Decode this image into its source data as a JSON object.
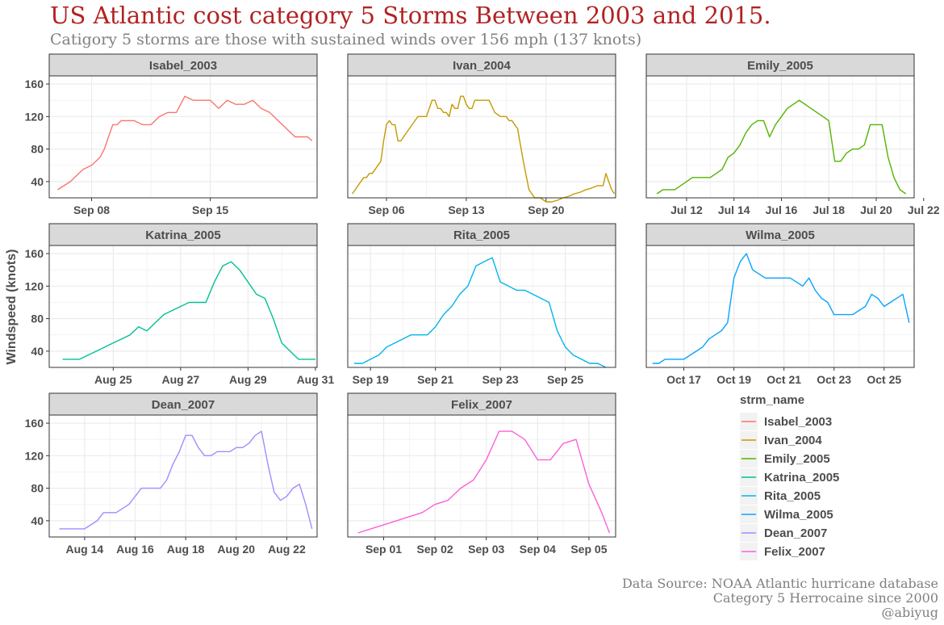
{
  "title": "US Atlantic cost category 5 Storms Between 2003 and 2015.",
  "subtitle": "Catigory 5 storms are those with sustained winds over 156 mph (137 knots)",
  "caption": [
    "Data Source:  NOAA Atlantic hurricane database",
    "Category 5 Herrocaine since 2000",
    "@abiyug"
  ],
  "chart_data": {
    "type": "line",
    "ylabel": "Windspeed (knots)",
    "y_ticks": [
      40,
      80,
      120,
      160
    ],
    "ylim": [
      20,
      170
    ],
    "legend": {
      "title": "strm_name",
      "position": "right"
    },
    "grid": true,
    "facets": [
      {
        "name": "Isabel_2003",
        "color": "#F8766D",
        "x_ticks": [
          "Sep 08",
          "Sep 15"
        ],
        "tick_days": [
          1,
          8
        ],
        "xlim": [
          -1.5,
          14.3
        ],
        "x": [
          -1,
          -0.25,
          0,
          0.5,
          1,
          1.25,
          1.5,
          1.75,
          2,
          2.25,
          2.5,
          2.75,
          3,
          3.5,
          4,
          4.5,
          4.75,
          5,
          5.5,
          6,
          6.5,
          7,
          7.5,
          7.75,
          8,
          8.5,
          9,
          9.5,
          9.75,
          10,
          10.5,
          11,
          11.5,
          11.75,
          12,
          12.5,
          12.75,
          13,
          13.25,
          13.5,
          13.75,
          14
        ],
        "y": [
          30,
          40,
          45,
          55,
          60,
          65,
          70,
          80,
          95,
          110,
          110,
          115,
          115,
          115,
          110,
          110,
          115,
          120,
          125,
          125,
          145,
          140,
          140,
          140,
          140,
          130,
          140,
          135,
          135,
          135,
          140,
          130,
          125,
          120,
          115,
          105,
          100,
          95,
          95,
          95,
          95,
          90
        ]
      },
      {
        "name": "Ivan_2004",
        "color": "#C49A00",
        "x_ticks": [
          "Sep 06",
          "Sep 13",
          "Sep 20"
        ],
        "tick_days": [
          1,
          8,
          15
        ],
        "xlim": [
          -2.4,
          21.1
        ],
        "x": [
          -2,
          -1.5,
          -1,
          -0.75,
          -0.5,
          -0.25,
          0,
          0.5,
          0.75,
          1,
          1.25,
          1.5,
          1.75,
          2,
          2.25,
          2.5,
          3,
          3.5,
          3.75,
          4,
          4.5,
          4.75,
          5,
          5.25,
          5.5,
          5.75,
          6,
          6.25,
          6.5,
          6.75,
          7,
          7.25,
          7.5,
          7.75,
          8,
          8.25,
          8.5,
          8.75,
          9,
          9.25,
          9.5,
          10,
          10.5,
          11,
          11.25,
          11.5,
          11.75,
          12,
          12.5,
          13,
          13.5,
          14,
          14.5,
          15,
          15.5,
          16,
          16.5,
          17,
          17.5,
          18,
          18.5,
          19,
          19.5,
          20,
          20.25,
          20.5,
          20.75,
          21
        ],
        "y": [
          25,
          35,
          45,
          45,
          50,
          50,
          55,
          65,
          90,
          110,
          115,
          110,
          110,
          90,
          90,
          95,
          105,
          115,
          120,
          120,
          120,
          130,
          140,
          140,
          130,
          130,
          125,
          125,
          120,
          135,
          130,
          130,
          145,
          145,
          135,
          130,
          130,
          140,
          140,
          140,
          140,
          140,
          125,
          120,
          120,
          120,
          115,
          115,
          105,
          65,
          30,
          20,
          20,
          15,
          15,
          17,
          20,
          22,
          25,
          27,
          30,
          32,
          35,
          35,
          50,
          40,
          30,
          25
        ]
      },
      {
        "name": "Emily_2005",
        "color": "#53B400",
        "x_ticks": [
          "Jul 12",
          "Jul 14",
          "Jul 16",
          "Jul 18",
          "Jul 20",
          "Jul 22"
        ],
        "tick_days": [
          12,
          14,
          16,
          18,
          20,
          22
        ],
        "xlim": [
          10.3,
          21.6
        ],
        "x": [
          10.75,
          11,
          11.25,
          11.5,
          11.75,
          12,
          12.25,
          12.5,
          12.75,
          13,
          13.25,
          13.5,
          13.75,
          14,
          14.25,
          14.5,
          14.75,
          15,
          15.25,
          15.5,
          15.75,
          16,
          16.25,
          16.5,
          16.75,
          17,
          17.25,
          17.5,
          17.75,
          18,
          18.25,
          18.5,
          18.75,
          19,
          19.25,
          19.5,
          19.75,
          20,
          20.25,
          20.5,
          20.75,
          21,
          21.25
        ],
        "y": [
          25,
          30,
          30,
          30,
          35,
          40,
          45,
          45,
          45,
          45,
          50,
          55,
          70,
          75,
          85,
          100,
          110,
          115,
          115,
          95,
          110,
          120,
          130,
          135,
          140,
          135,
          130,
          125,
          120,
          115,
          65,
          65,
          75,
          80,
          80,
          85,
          110,
          110,
          110,
          70,
          45,
          30,
          25
        ]
      },
      {
        "name": "Katrina_2005",
        "color": "#00C094",
        "x_ticks": [
          "Aug 25",
          "Aug 27",
          "Aug 29",
          "Aug 31"
        ],
        "tick_days": [
          25,
          27,
          29,
          31
        ],
        "xlim": [
          23.1,
          31.05
        ],
        "x": [
          23.5,
          23.75,
          24,
          24.25,
          24.5,
          24.75,
          25,
          25.25,
          25.5,
          25.75,
          26,
          26.25,
          26.5,
          26.75,
          27,
          27.25,
          27.5,
          27.75,
          28,
          28.25,
          28.5,
          28.75,
          29,
          29.25,
          29.5,
          29.75,
          30,
          30.25,
          30.5,
          30.75,
          31
        ],
        "y": [
          30,
          30,
          30,
          35,
          40,
          45,
          50,
          55,
          60,
          70,
          65,
          75,
          85,
          90,
          95,
          100,
          100,
          100,
          125,
          145,
          150,
          140,
          125,
          110,
          105,
          80,
          50,
          40,
          30,
          30,
          30
        ]
      },
      {
        "name": "Rita_2005",
        "color": "#00B6EB",
        "x_ticks": [
          "Sep 19",
          "Sep 21",
          "Sep 23",
          "Sep 25"
        ],
        "tick_days": [
          19,
          21,
          23,
          25
        ],
        "xlim": [
          18.3,
          26.55
        ],
        "x": [
          18.5,
          18.75,
          19,
          19.25,
          19.5,
          19.75,
          20,
          20.25,
          20.5,
          20.75,
          21,
          21.25,
          21.5,
          21.75,
          22,
          22.25,
          22.5,
          22.75,
          23,
          23.25,
          23.5,
          23.75,
          24,
          24.25,
          24.5,
          24.75,
          25,
          25.25,
          25.5,
          25.75,
          26,
          26.25
        ],
        "y": [
          25,
          25,
          30,
          35,
          45,
          50,
          55,
          60,
          60,
          60,
          70,
          85,
          95,
          110,
          120,
          145,
          150,
          155,
          125,
          120,
          115,
          115,
          110,
          105,
          100,
          65,
          45,
          35,
          30,
          25,
          25,
          20
        ]
      },
      {
        "name": "Wilma_2005",
        "color": "#06A4FF",
        "x_ticks": [
          "Oct 17",
          "Oct 19",
          "Oct 21",
          "Oct 23",
          "Oct 25"
        ],
        "tick_days": [
          17,
          19,
          21,
          23,
          25
        ],
        "xlim": [
          15.5,
          26.2
        ],
        "x": [
          15.75,
          16,
          16.25,
          16.5,
          16.75,
          17,
          17.25,
          17.5,
          17.75,
          18,
          18.25,
          18.5,
          18.75,
          19,
          19.25,
          19.5,
          19.75,
          20,
          20.25,
          20.5,
          20.75,
          21,
          21.25,
          21.5,
          21.75,
          22,
          22.25,
          22.5,
          22.75,
          23,
          23.25,
          23.5,
          23.75,
          24,
          24.25,
          24.5,
          24.75,
          25,
          25.25,
          25.5,
          25.75,
          26
        ],
        "y": [
          25,
          25,
          30,
          30,
          30,
          30,
          35,
          40,
          45,
          55,
          60,
          65,
          75,
          130,
          150,
          160,
          140,
          135,
          130,
          130,
          130,
          130,
          130,
          125,
          120,
          130,
          115,
          105,
          100,
          85,
          85,
          85,
          85,
          90,
          95,
          110,
          105,
          95,
          100,
          105,
          110,
          75
        ]
      },
      {
        "name": "Dean_2007",
        "color": "#A58AFF",
        "x_ticks": [
          "Aug 14",
          "Aug 16",
          "Aug 18",
          "Aug 20",
          "Aug 22"
        ],
        "tick_days": [
          14,
          16,
          18,
          20,
          22
        ],
        "xlim": [
          12.6,
          23.2
        ],
        "x": [
          13,
          13.25,
          13.5,
          13.75,
          14,
          14.25,
          14.5,
          14.75,
          15,
          15.25,
          15.5,
          15.75,
          16,
          16.25,
          16.5,
          16.75,
          17,
          17.25,
          17.5,
          17.75,
          18,
          18.25,
          18.5,
          18.75,
          19,
          19.25,
          19.5,
          19.75,
          20,
          20.25,
          20.5,
          20.75,
          21,
          21.25,
          21.5,
          21.75,
          22,
          22.25,
          22.5,
          22.75,
          23
        ],
        "y": [
          30,
          30,
          30,
          30,
          30,
          35,
          40,
          50,
          50,
          50,
          55,
          60,
          70,
          80,
          80,
          80,
          80,
          90,
          110,
          125,
          145,
          145,
          130,
          120,
          120,
          125,
          125,
          125,
          130,
          130,
          135,
          145,
          150,
          110,
          75,
          65,
          70,
          80,
          85,
          60,
          30
        ]
      },
      {
        "name": "Felix_2007",
        "color": "#FB61D7",
        "x_ticks": [
          "Sep 01",
          "Sep 02",
          "Sep 03",
          "Sep 04",
          "Sep 05"
        ],
        "tick_days": [
          1,
          2,
          3,
          4,
          5
        ],
        "xlim": [
          0.3,
          5.52
        ],
        "x": [
          0.5,
          0.75,
          1,
          1.25,
          1.5,
          1.75,
          2,
          2.25,
          2.5,
          2.75,
          3,
          3.25,
          3.5,
          3.75,
          4,
          4.25,
          4.5,
          4.75,
          5,
          5.25,
          5.4
        ],
        "y": [
          25,
          30,
          35,
          40,
          45,
          50,
          60,
          65,
          80,
          90,
          115,
          150,
          150,
          140,
          115,
          115,
          135,
          140,
          85,
          50,
          25
        ]
      }
    ]
  }
}
